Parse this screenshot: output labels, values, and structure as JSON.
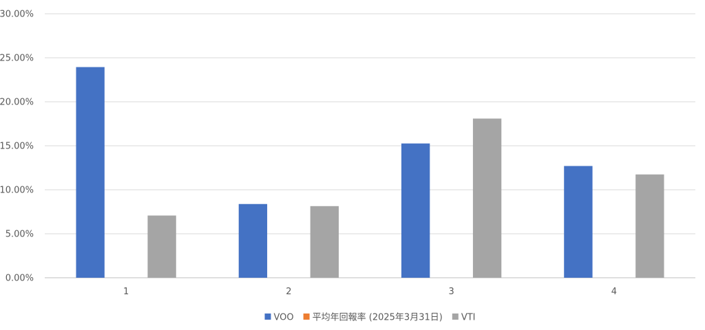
{
  "chart_data": {
    "type": "bar",
    "categories": [
      "1",
      "2",
      "3",
      "4"
    ],
    "series": [
      {
        "name": "VOO",
        "color": "#4472C4",
        "values": [
          0.2394,
          0.0838,
          0.1526,
          0.127
        ]
      },
      {
        "name": "平均年回報率 (2025年3月31日)",
        "color": "#ED7D31",
        "values": [
          0,
          0,
          0,
          0
        ]
      },
      {
        "name": "VTI",
        "color": "#A5A5A5",
        "values": [
          0.0707,
          0.0814,
          0.1809,
          0.1174
        ]
      }
    ],
    "ylim": [
      0,
      0.3
    ],
    "yticks": [
      0,
      0.05,
      0.1,
      0.15,
      0.2,
      0.25,
      0.3
    ],
    "ytick_labels": [
      "0.00%",
      "5.00%",
      "10.00%",
      "15.00%",
      "20.00%",
      "25.00%",
      "30.00%"
    ],
    "grid": true,
    "legend_position": "bottom",
    "title": "",
    "xlabel": "",
    "ylabel": ""
  }
}
